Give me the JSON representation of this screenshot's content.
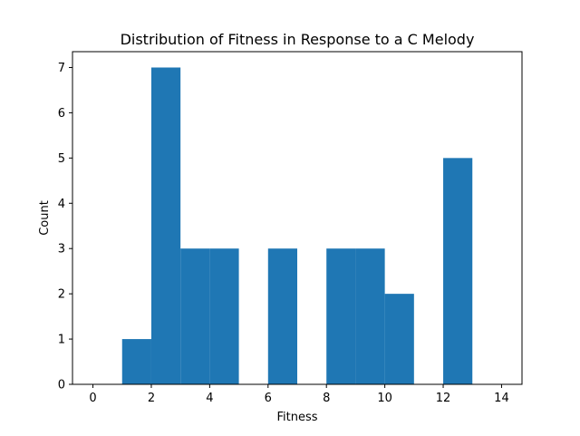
{
  "chart_data": {
    "type": "bar",
    "title": "Distribution of Fitness in Response to a C Melody",
    "xlabel": "Fitness",
    "ylabel": "Count",
    "xlim": [
      -0.7,
      14.7
    ],
    "ylim": [
      0,
      7.35
    ],
    "xticks": [
      0,
      2,
      4,
      6,
      8,
      10,
      12,
      14
    ],
    "yticks": [
      0,
      1,
      2,
      3,
      4,
      5,
      6,
      7
    ],
    "bin_edges": [
      0,
      1,
      2,
      3,
      4,
      5,
      6,
      7,
      8,
      9,
      10,
      11,
      12,
      13,
      14
    ],
    "counts": [
      0,
      1,
      7,
      3,
      3,
      0,
      3,
      0,
      3,
      3,
      2,
      0,
      5,
      0
    ],
    "bar_color": "#1f77b4",
    "grid": false
  }
}
